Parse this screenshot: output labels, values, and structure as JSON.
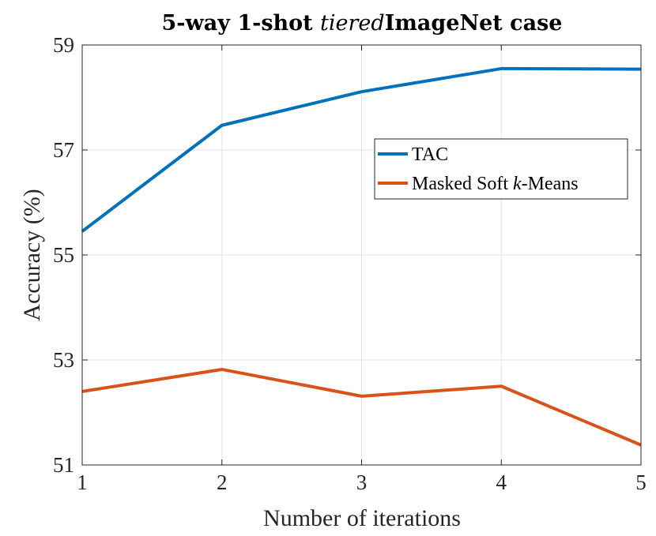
{
  "chart_data": {
    "type": "line",
    "title_prefix": "5-way 1-shot ",
    "title_italic": "tiered",
    "title_suffix": "ImageNet case",
    "xlabel": "Number of iterations",
    "ylabel": "Accuracy (%)",
    "x": [
      1,
      2,
      3,
      4,
      5
    ],
    "xlim": [
      1,
      5
    ],
    "ylim": [
      51,
      59
    ],
    "xticks": [
      "1",
      "2",
      "3",
      "4",
      "5"
    ],
    "yticks": [
      "51",
      "53",
      "55",
      "57",
      "59"
    ],
    "grid": true,
    "legend_position": "upper-right",
    "series": [
      {
        "name": "TAC",
        "color": "#0072BD",
        "values": [
          55.45,
          57.47,
          58.11,
          58.55,
          58.54
        ]
      },
      {
        "name_prefix": "Masked Soft ",
        "name_italic": "k",
        "name_suffix": "-Means",
        "color": "#D95319",
        "values": [
          52.4,
          52.82,
          52.31,
          52.5,
          51.38
        ]
      }
    ]
  }
}
